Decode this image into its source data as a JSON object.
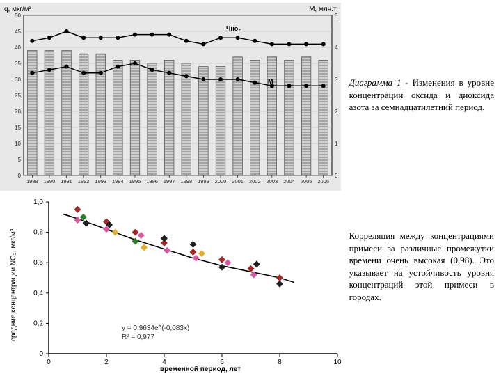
{
  "chart1": {
    "type": "bar+line",
    "background_color": "#e8e8e8",
    "plot_background": "#e8e8e8",
    "border_color": "#000000",
    "grid_color": "#b5b5b5",
    "y_left": {
      "label": "q, мкг/м³",
      "lim": [
        0,
        50
      ],
      "ticks": [
        0,
        5,
        10,
        15,
        20,
        25,
        30,
        35,
        40,
        45,
        50
      ]
    },
    "y_right": {
      "label": "М, млн.т",
      "lim": [
        0,
        5
      ],
      "ticks": [
        0,
        1,
        2,
        3,
        4,
        5
      ]
    },
    "x_labels": [
      "1989",
      "1990",
      "1991",
      "1992",
      "1993",
      "1994",
      "1995",
      "1996",
      "1997",
      "1998",
      "1999",
      "2000",
      "2001",
      "2002",
      "2003",
      "2004",
      "2005",
      "2006"
    ],
    "bars": {
      "values": [
        39,
        39,
        39,
        38,
        38,
        36,
        36,
        35,
        36,
        35,
        34,
        34,
        37,
        36,
        37,
        36,
        37,
        36
      ],
      "fill_color": "#cfcfcf",
      "hatch_color": "#7a7a7a",
      "border_color": "#4a4a4a",
      "bar_width": 0.55
    },
    "line_q_no2": {
      "label": "Чно₂",
      "values": [
        42,
        43,
        45,
        43,
        43,
        43,
        44,
        44,
        44,
        42,
        41,
        43,
        43,
        42,
        41,
        41,
        41,
        41
      ],
      "color": "#000000",
      "marker": "circle",
      "marker_size": 3,
      "line_width": 1.5
    },
    "line_m": {
      "label": "M",
      "values_right": [
        3.2,
        3.3,
        3.4,
        3.2,
        3.2,
        3.4,
        3.5,
        3.3,
        3.2,
        3.1,
        3.0,
        3.0,
        3.0,
        2.9,
        2.8,
        2.8,
        2.8,
        2.8
      ],
      "color": "#000000",
      "marker": "circle",
      "marker_size": 3,
      "line_width": 1.5
    }
  },
  "caption1": {
    "lead": "Диаграмма 1",
    "rest": " - Изменения в уровне концентрации оксида и диоксида азота за семнадцатилетний период."
  },
  "chart2": {
    "type": "scatter+fit",
    "background_color": "#ffffff",
    "axis_color": "#000000",
    "x": {
      "label": "временной период, лет",
      "lim": [
        0,
        10
      ],
      "ticks": [
        0,
        2,
        4,
        6,
        8,
        10
      ]
    },
    "y": {
      "label": "средние концентрации NO₂, мкг/м³",
      "lim": [
        0,
        1.0
      ],
      "ticks": [
        0,
        0.2,
        0.4,
        0.6,
        0.8,
        1.0
      ],
      "tick_labels": [
        "0",
        "0,2",
        "0,4",
        "0,6",
        "0,8",
        "1,0"
      ]
    },
    "points": [
      {
        "x": 1.0,
        "y": 0.95,
        "c": "#a02a2a"
      },
      {
        "x": 1.0,
        "y": 0.88,
        "c": "#d65aa0"
      },
      {
        "x": 1.2,
        "y": 0.9,
        "c": "#2a7a2a"
      },
      {
        "x": 1.3,
        "y": 0.86,
        "c": "#202020"
      },
      {
        "x": 2.0,
        "y": 0.87,
        "c": "#a02a2a"
      },
      {
        "x": 2.0,
        "y": 0.82,
        "c": "#d65aa0"
      },
      {
        "x": 2.1,
        "y": 0.85,
        "c": "#202020"
      },
      {
        "x": 2.3,
        "y": 0.8,
        "c": "#e0b030"
      },
      {
        "x": 3.0,
        "y": 0.8,
        "c": "#a02a2a"
      },
      {
        "x": 3.0,
        "y": 0.74,
        "c": "#2a7a2a"
      },
      {
        "x": 3.2,
        "y": 0.78,
        "c": "#d65aa0"
      },
      {
        "x": 3.3,
        "y": 0.7,
        "c": "#e0b030"
      },
      {
        "x": 4.0,
        "y": 0.73,
        "c": "#a02a2a"
      },
      {
        "x": 4.0,
        "y": 0.76,
        "c": "#202020"
      },
      {
        "x": 4.1,
        "y": 0.68,
        "c": "#d65aa0"
      },
      {
        "x": 5.0,
        "y": 0.67,
        "c": "#a02a2a"
      },
      {
        "x": 5.0,
        "y": 0.72,
        "c": "#202020"
      },
      {
        "x": 5.1,
        "y": 0.63,
        "c": "#d65aa0"
      },
      {
        "x": 5.3,
        "y": 0.66,
        "c": "#e0b030"
      },
      {
        "x": 6.0,
        "y": 0.62,
        "c": "#a02a2a"
      },
      {
        "x": 6.0,
        "y": 0.57,
        "c": "#202020"
      },
      {
        "x": 6.2,
        "y": 0.6,
        "c": "#d65aa0"
      },
      {
        "x": 7.0,
        "y": 0.56,
        "c": "#a02a2a"
      },
      {
        "x": 7.1,
        "y": 0.52,
        "c": "#d65aa0"
      },
      {
        "x": 7.2,
        "y": 0.59,
        "c": "#202020"
      },
      {
        "x": 8.0,
        "y": 0.5,
        "c": "#a02a2a"
      },
      {
        "x": 8.0,
        "y": 0.46,
        "c": "#202020"
      }
    ],
    "fit": {
      "equation": "y = 0,9634e^(-0,083x)",
      "r2_label": "R² = 0,977",
      "curve_color": "#000000",
      "curve_width": 1.6,
      "samples_x": [
        0.5,
        1,
        2,
        3,
        4,
        5,
        6,
        7,
        8,
        8.5
      ],
      "samples_y": [
        0.92,
        0.89,
        0.82,
        0.75,
        0.69,
        0.63,
        0.58,
        0.54,
        0.5,
        0.47
      ]
    },
    "marker_shape": "diamond",
    "marker_size": 5
  },
  "caption2": {
    "text": "Корреляция между концентрациями примеси за различные промежутки времени очень высокая (0,98). Это указывает на устойчивость уровня концентраций этой примеси в городах."
  }
}
